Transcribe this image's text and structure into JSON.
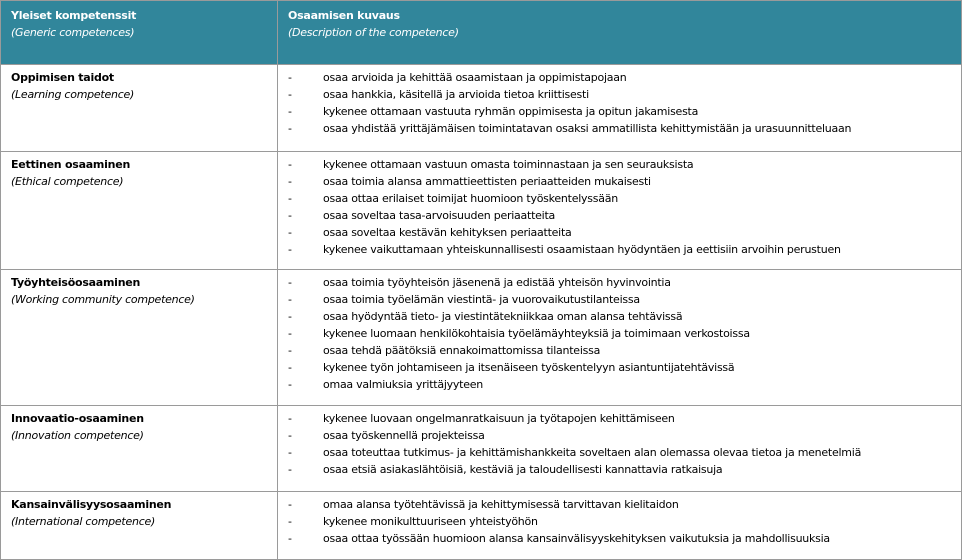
{
  "table": {
    "header": [
      {
        "title": "Yleiset kompetenssit",
        "subtitle": "(Generic competences)"
      },
      {
        "title": "Osaamisen kuvaus",
        "subtitle": "(Description of the competence)"
      }
    ],
    "rows": [
      {
        "name": "Oppimisen taidot",
        "subtitle": "(Learning competence)",
        "items": [
          "osaa arvioida ja kehittää osaamistaan ja oppimistapojaan",
          "osaa hankkia, käsitellä ja arvioida tietoa kriittisesti",
          "kykenee ottamaan vastuuta ryhmän oppimisesta ja opitun jakamisesta",
          "osaa yhdistää yrittäjämäisen toimintatavan osaksi ammatillista kehittymistään ja urasuunnitteluaan"
        ]
      },
      {
        "name": "Eettinen osaaminen",
        "subtitle": "(Ethical competence)",
        "items": [
          "kykenee ottamaan vastuun omasta toiminnastaan ja sen seurauksista",
          "osaa toimia alansa ammattieettisten periaatteiden mukaisesti",
          "osaa ottaa erilaiset toimijat huomioon työskentelyssään",
          "osaa soveltaa tasa-arvoisuuden periaatteita",
          "osaa soveltaa kestävän kehityksen periaatteita",
          "kykenee vaikuttamaan yhteiskunnallisesti osaamistaan hyödyntäen ja eettisiin arvoihin perustuen"
        ]
      },
      {
        "name": "Työyhteisöosaaminen",
        "subtitle": "(Working community competence)",
        "items": [
          "osaa toimia työyhteisön jäsenenä ja edistää yhteisön hyvinvointia",
          "osaa toimia työelämän viestintä- ja vuorovaikutustilanteissa",
          "osaa hyödyntää tieto- ja viestintätekniikkaa oman alansa tehtävissä",
          "kykenee luomaan henkilökohtaisia työelämäyhteyksiä ja toimimaan verkostoissa",
          "osaa tehdä päätöksiä ennakoimattomissa tilanteissa",
          "kykenee työn johtamiseen ja itsenäiseen työskentelyyn asiantuntijatehtävissä",
          "omaa valmiuksia yrittäjyyteen"
        ]
      },
      {
        "name": "Innovaatio-osaaminen",
        "subtitle": "(Innovation competence)",
        "items": [
          "kykenee luovaan ongelmanratkaisuun ja työtapojen kehittämiseen",
          "osaa työskennellä projekteissa",
          "osaa toteuttaa tutkimus- ja kehittämishankkeita soveltaen alan olemassa olevaa tietoa ja menetelmiä",
          "osaa etsiä asiakaslähtöisiä, kestäviä ja taloudellisesti kannattavia ratkaisuja"
        ]
      },
      {
        "name": "Kansainvälisyysosaaminen",
        "subtitle": "(International competence)",
        "items": [
          "omaa alansa työtehtävissä ja kehittymisessä tarvittavan kielitaidon",
          "kykenee monikulttuuriseen yhteistyöhön",
          "osaa ottaa työssään huomioon alansa kansainvälisyyskehityksen vaikutuksia ja mahdollisuuksia"
        ]
      }
    ]
  }
}
